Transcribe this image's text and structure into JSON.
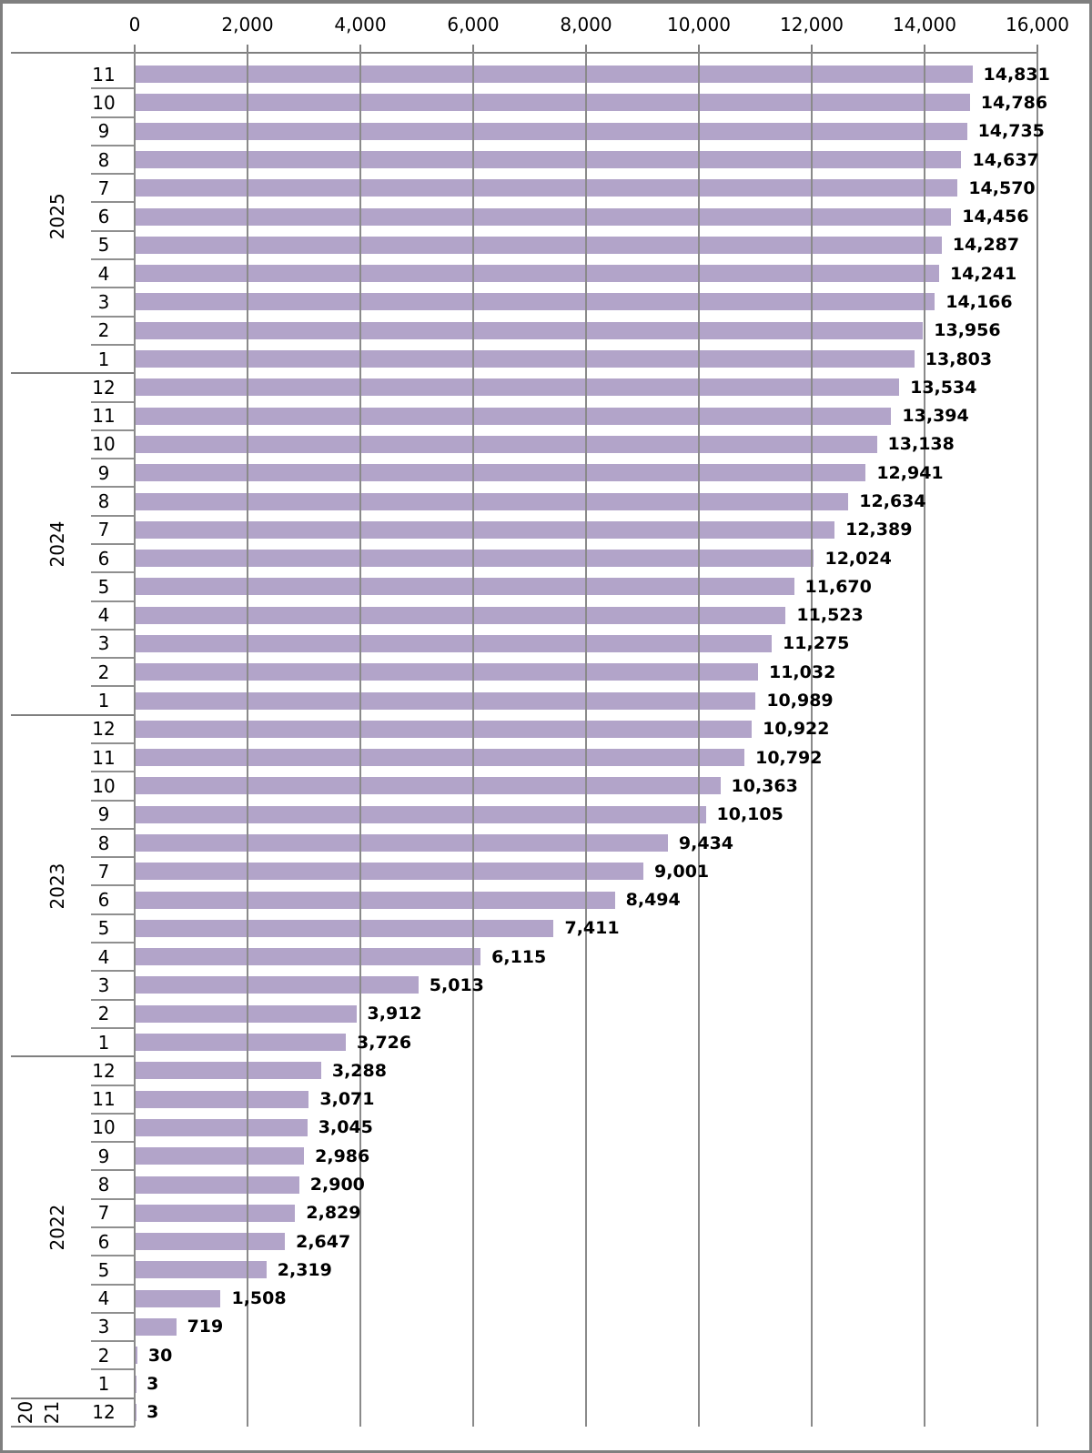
{
  "chart_data": {
    "type": "bar",
    "orientation": "horizontal",
    "title": "",
    "xlabel": "",
    "ylabel": "",
    "xlim": [
      0,
      16000
    ],
    "grid": true,
    "legend_position": "none",
    "x_axis_position": "top",
    "x_ticks": [
      0,
      2000,
      4000,
      6000,
      8000,
      10000,
      12000,
      14000,
      16000
    ],
    "x_tick_labels": [
      "0",
      "2,000",
      "4,000",
      "6,000",
      "8,000",
      "10,000",
      "12,000",
      "14,000",
      "16,000"
    ],
    "bar_color": "#b2a4c9",
    "axis_color": "#7f7f7f",
    "gridline_color": "#8a8a8a",
    "frame_color": "#7f7f7f",
    "groups": [
      {
        "year": "2025",
        "rows": [
          {
            "month": "11",
            "value": 14831,
            "display": "14,831"
          },
          {
            "month": "10",
            "value": 14786,
            "display": "14,786"
          },
          {
            "month": "9",
            "value": 14735,
            "display": "14,735"
          },
          {
            "month": "8",
            "value": 14637,
            "display": "14,637"
          },
          {
            "month": "7",
            "value": 14570,
            "display": "14,570"
          },
          {
            "month": "6",
            "value": 14456,
            "display": "14,456"
          },
          {
            "month": "5",
            "value": 14287,
            "display": "14,287"
          },
          {
            "month": "4",
            "value": 14241,
            "display": "14,241"
          },
          {
            "month": "3",
            "value": 14166,
            "display": "14,166"
          },
          {
            "month": "2",
            "value": 13956,
            "display": "13,956"
          },
          {
            "month": "1",
            "value": 13803,
            "display": "13,803"
          }
        ]
      },
      {
        "year": "2024",
        "rows": [
          {
            "month": "12",
            "value": 13534,
            "display": "13,534"
          },
          {
            "month": "11",
            "value": 13394,
            "display": "13,394"
          },
          {
            "month": "10",
            "value": 13138,
            "display": "13,138"
          },
          {
            "month": "9",
            "value": 12941,
            "display": "12,941"
          },
          {
            "month": "8",
            "value": 12634,
            "display": "12,634"
          },
          {
            "month": "7",
            "value": 12389,
            "display": "12,389"
          },
          {
            "month": "6",
            "value": 12024,
            "display": "12,024"
          },
          {
            "month": "5",
            "value": 11670,
            "display": "11,670"
          },
          {
            "month": "4",
            "value": 11523,
            "display": "11,523"
          },
          {
            "month": "3",
            "value": 11275,
            "display": "11,275"
          },
          {
            "month": "2",
            "value": 11032,
            "display": "11,032"
          },
          {
            "month": "1",
            "value": 10989,
            "display": "10,989"
          }
        ]
      },
      {
        "year": "2023",
        "rows": [
          {
            "month": "12",
            "value": 10922,
            "display": "10,922"
          },
          {
            "month": "11",
            "value": 10792,
            "display": "10,792"
          },
          {
            "month": "10",
            "value": 10363,
            "display": "10,363"
          },
          {
            "month": "9",
            "value": 10105,
            "display": "10,105"
          },
          {
            "month": "8",
            "value": 9434,
            "display": "9,434"
          },
          {
            "month": "7",
            "value": 9001,
            "display": "9,001"
          },
          {
            "month": "6",
            "value": 8494,
            "display": "8,494"
          },
          {
            "month": "5",
            "value": 7411,
            "display": "7,411"
          },
          {
            "month": "4",
            "value": 6115,
            "display": "6,115"
          },
          {
            "month": "3",
            "value": 5013,
            "display": "5,013"
          },
          {
            "month": "2",
            "value": 3912,
            "display": "3,912"
          },
          {
            "month": "1",
            "value": 3726,
            "display": "3,726"
          }
        ]
      },
      {
        "year": "2022",
        "rows": [
          {
            "month": "12",
            "value": 3288,
            "display": "3,288"
          },
          {
            "month": "11",
            "value": 3071,
            "display": "3,071"
          },
          {
            "month": "10",
            "value": 3045,
            "display": "3,045"
          },
          {
            "month": "9",
            "value": 2986,
            "display": "2,986"
          },
          {
            "month": "8",
            "value": 2900,
            "display": "2,900"
          },
          {
            "month": "7",
            "value": 2829,
            "display": "2,829"
          },
          {
            "month": "6",
            "value": 2647,
            "display": "2,647"
          },
          {
            "month": "5",
            "value": 2319,
            "display": "2,319"
          },
          {
            "month": "4",
            "value": 1508,
            "display": "1,508"
          },
          {
            "month": "3",
            "value": 719,
            "display": "719"
          },
          {
            "month": "2",
            "value": 30,
            "display": "30"
          },
          {
            "month": "1",
            "value": 3,
            "display": "3"
          }
        ]
      },
      {
        "year": "2021",
        "year_display": [
          "20",
          "21"
        ],
        "rows": [
          {
            "month": "12",
            "value": 3,
            "display": "3"
          }
        ]
      }
    ]
  }
}
